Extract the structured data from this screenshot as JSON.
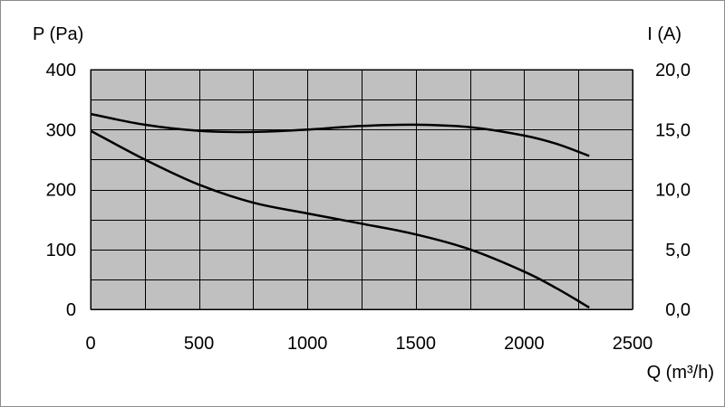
{
  "chart_data": {
    "type": "line",
    "x_label": "Q (m³/h)",
    "y_left_label": "P (Pa)",
    "y_right_label": "I (A)",
    "xlim": [
      0,
      2500
    ],
    "ylim_left": [
      0,
      400
    ],
    "ylim_right": [
      0,
      20
    ],
    "x_ticks": [
      "0",
      "500",
      "1000",
      "1500",
      "2000",
      "2500"
    ],
    "y_left_ticks": [
      "0",
      "100",
      "200",
      "300",
      "400"
    ],
    "y_right_ticks": [
      "0,0",
      "5,0",
      "10,0",
      "15,0",
      "20,0"
    ],
    "grid": true,
    "plot_background": "#c0c0c0",
    "series": [
      {
        "axis": "left",
        "x": [
          0,
          250,
          500,
          750,
          1000,
          1250,
          1500,
          1750,
          2000,
          2150,
          2300
        ],
        "y": [
          298,
          250,
          208,
          178,
          160,
          143,
          125,
          100,
          63,
          35,
          3
        ]
      },
      {
        "axis": "right",
        "x": [
          0,
          250,
          500,
          750,
          1000,
          1250,
          1500,
          1750,
          2000,
          2150,
          2300
        ],
        "y": [
          16.3,
          15.4,
          14.9,
          14.8,
          15.0,
          15.3,
          15.4,
          15.2,
          14.5,
          13.8,
          12.8
        ]
      }
    ]
  }
}
